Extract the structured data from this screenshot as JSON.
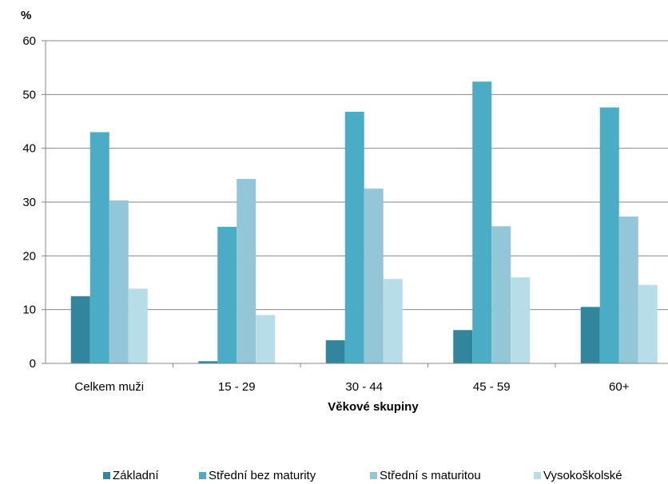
{
  "chart_data": {
    "type": "bar",
    "unit_label": "%",
    "xlabel": "Věkové skupiny",
    "ylabel": "",
    "ylim": [
      0,
      60
    ],
    "yticks": [
      0,
      10,
      20,
      30,
      40,
      50,
      60
    ],
    "grid": true,
    "legend_position": "bottom",
    "categories": [
      "Celkem muži",
      "15 - 29",
      "30 - 44",
      "45 - 59",
      "60+"
    ],
    "series": [
      {
        "name": "Základní",
        "color": "#31859c",
        "values": [
          12.5,
          0.4,
          4.3,
          6.2,
          10.5
        ]
      },
      {
        "name": "Střední bez maturity",
        "color": "#4bacc6",
        "values": [
          43.0,
          25.4,
          46.8,
          52.4,
          47.6
        ]
      },
      {
        "name": "Střední s maturitou",
        "color": "#93c6d6",
        "values": [
          30.3,
          34.3,
          32.5,
          25.5,
          27.3
        ]
      },
      {
        "name": "Vysokoškolské",
        "color": "#b7dee8",
        "values": [
          13.9,
          9.0,
          15.7,
          16.0,
          14.6
        ]
      }
    ]
  }
}
